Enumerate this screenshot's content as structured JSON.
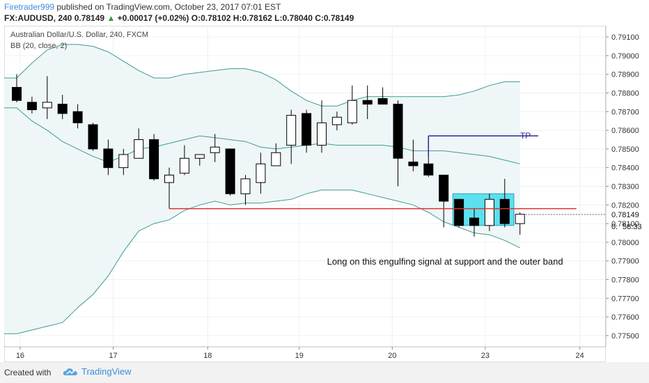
{
  "header": {
    "author": "Firetrader999",
    "published": " published on TradingView.com, October 23, 2017 07:01 EST",
    "symbol": "FX:AUDUSD, 240",
    "last": "0.78149",
    "change": "+0.00017 (+0.02%)",
    "ohlc": "O:0.78102 H:0.78162 L:0.78040 C:0.78149"
  },
  "footer": {
    "created_with": "Created with",
    "brand": "TradingView"
  },
  "colors": {
    "band_line": "#3f9b8f",
    "band_fill": "#eef6f8",
    "support_line": "#e03030",
    "tp_line": "#2a2a9a",
    "highlight": "#5ce0f0",
    "candle": "#000000"
  },
  "chart_data": {
    "type": "candlestick",
    "title": "Australian Dollar/U.S. Dollar, 240, FXCM",
    "indicator_label": "BB (20, close, 2)",
    "ylim": [
      0.7744,
      0.7916
    ],
    "y_ticks": [
      "0.77500",
      "0.77600",
      "0.77700",
      "0.77800",
      "0.77900",
      "0.78000",
      "0.78100",
      "0.78200",
      "0.78300",
      "0.78400",
      "0.78500",
      "0.78600",
      "0.78700",
      "0.78800",
      "0.78900",
      "0.79000",
      "0.79100"
    ],
    "x_ticks": [
      {
        "label": "16",
        "i": 0.5
      },
      {
        "label": "17",
        "i": 6.6
      },
      {
        "label": "18",
        "i": 12.8
      },
      {
        "label": "19",
        "i": 18.8
      },
      {
        "label": "20",
        "i": 24.9
      },
      {
        "label": "23",
        "i": 31
      },
      {
        "label": "24",
        "i": 37.2
      }
    ],
    "price_label": "0.78149",
    "countdown_label": "58:33",
    "countdown_prefix": "0.",
    "candles": [
      {
        "o": 0.7883,
        "h": 0.789,
        "l": 0.7875,
        "c": 0.7876
      },
      {
        "o": 0.7875,
        "h": 0.7878,
        "l": 0.7869,
        "c": 0.7871
      },
      {
        "o": 0.7872,
        "h": 0.7889,
        "l": 0.7866,
        "c": 0.7875
      },
      {
        "o": 0.7874,
        "h": 0.7879,
        "l": 0.7866,
        "c": 0.7869
      },
      {
        "o": 0.787,
        "h": 0.7874,
        "l": 0.7861,
        "c": 0.7864
      },
      {
        "o": 0.7863,
        "h": 0.7864,
        "l": 0.7849,
        "c": 0.785
      },
      {
        "o": 0.785,
        "h": 0.7855,
        "l": 0.7836,
        "c": 0.784
      },
      {
        "o": 0.784,
        "h": 0.785,
        "l": 0.7836,
        "c": 0.7847
      },
      {
        "o": 0.7845,
        "h": 0.7861,
        "l": 0.7845,
        "c": 0.7855
      },
      {
        "o": 0.7855,
        "h": 0.7858,
        "l": 0.7833,
        "c": 0.7834
      },
      {
        "o": 0.7832,
        "h": 0.784,
        "l": 0.7818,
        "c": 0.7836
      },
      {
        "o": 0.7837,
        "h": 0.7852,
        "l": 0.7836,
        "c": 0.7845
      },
      {
        "o": 0.7845,
        "h": 0.7847,
        "l": 0.7841,
        "c": 0.7847
      },
      {
        "o": 0.7848,
        "h": 0.7858,
        "l": 0.7843,
        "c": 0.7851
      },
      {
        "o": 0.785,
        "h": 0.785,
        "l": 0.7825,
        "c": 0.7826
      },
      {
        "o": 0.7826,
        "h": 0.7836,
        "l": 0.782,
        "c": 0.7834
      },
      {
        "o": 0.7832,
        "h": 0.7848,
        "l": 0.7826,
        "c": 0.7842
      },
      {
        "o": 0.7841,
        "h": 0.7853,
        "l": 0.7841,
        "c": 0.7848
      },
      {
        "o": 0.7852,
        "h": 0.7871,
        "l": 0.7842,
        "c": 0.7868
      },
      {
        "o": 0.7869,
        "h": 0.7871,
        "l": 0.7848,
        "c": 0.7852
      },
      {
        "o": 0.7852,
        "h": 0.7876,
        "l": 0.7848,
        "c": 0.7864
      },
      {
        "o": 0.7863,
        "h": 0.787,
        "l": 0.786,
        "c": 0.7867
      },
      {
        "o": 0.7864,
        "h": 0.7884,
        "l": 0.7863,
        "c": 0.7876
      },
      {
        "o": 0.7876,
        "h": 0.7884,
        "l": 0.7866,
        "c": 0.7874
      },
      {
        "o": 0.7877,
        "h": 0.7883,
        "l": 0.7874,
        "c": 0.7874
      },
      {
        "o": 0.7874,
        "h": 0.7876,
        "l": 0.783,
        "c": 0.7845
      },
      {
        "o": 0.7843,
        "h": 0.7855,
        "l": 0.7838,
        "c": 0.7841
      },
      {
        "o": 0.7842,
        "h": 0.7857,
        "l": 0.7835,
        "c": 0.7836
      },
      {
        "o": 0.7836,
        "h": 0.7836,
        "l": 0.7808,
        "c": 0.7822
      },
      {
        "o": 0.7823,
        "h": 0.7823,
        "l": 0.7808,
        "c": 0.7809
      },
      {
        "o": 0.7813,
        "h": 0.7818,
        "l": 0.7803,
        "c": 0.7809
      },
      {
        "o": 0.7809,
        "h": 0.7826,
        "l": 0.7806,
        "c": 0.7823
      },
      {
        "o": 0.7823,
        "h": 0.7834,
        "l": 0.7808,
        "c": 0.781
      },
      {
        "o": 0.781,
        "h": 0.7816,
        "l": 0.7804,
        "c": 0.7815
      }
    ],
    "bb_upper": [
      0.7888,
      0.7896,
      0.7903,
      0.7906,
      0.7906,
      0.7905,
      0.7902,
      0.7897,
      0.7892,
      0.7888,
      0.7888,
      0.789,
      0.7891,
      0.7892,
      0.7893,
      0.7893,
      0.7891,
      0.7887,
      0.7881,
      0.7876,
      0.7873,
      0.7873,
      0.7876,
      0.7878,
      0.7878,
      0.7878,
      0.7878,
      0.7878,
      0.7878,
      0.7879,
      0.7881,
      0.7884,
      0.7886,
      0.7886
    ],
    "bb_middle": [
      0.7872,
      0.7865,
      0.786,
      0.7854,
      0.785,
      0.7846,
      0.7843,
      0.7846,
      0.785,
      0.7851,
      0.7853,
      0.7855,
      0.7857,
      0.7856,
      0.7855,
      0.7854,
      0.7851,
      0.785,
      0.7851,
      0.7852,
      0.7853,
      0.7852,
      0.7852,
      0.7852,
      0.7852,
      0.7851,
      0.7849,
      0.7849,
      0.7849,
      0.7848,
      0.7847,
      0.7846,
      0.7844,
      0.7842
    ],
    "bb_lower": [
      0.7751,
      0.7753,
      0.7755,
      0.7757,
      0.7765,
      0.7772,
      0.7782,
      0.7795,
      0.7806,
      0.781,
      0.7812,
      0.7817,
      0.782,
      0.7822,
      0.782,
      0.7821,
      0.7821,
      0.7822,
      0.7823,
      0.7826,
      0.7828,
      0.7828,
      0.7828,
      0.7826,
      0.7824,
      0.7822,
      0.782,
      0.7816,
      0.7811,
      0.7808,
      0.7805,
      0.7804,
      0.7801,
      0.7797
    ],
    "support_line": {
      "value": 0.7818,
      "from_i": 10,
      "to_i": 36.7
    },
    "tp_line": {
      "value": 0.7857,
      "from_i": 27,
      "to_i": 34.2,
      "label": "TP"
    },
    "tp_connector": {
      "i": 27,
      "from": 0.7846,
      "to": 0.7857
    },
    "highlight_box": {
      "from_i": 28.6,
      "to_i": 32.6,
      "ylo": 0.7809,
      "yhi": 0.7826
    },
    "annotation": {
      "text": "Long on this engulfing signal at support and the outer band",
      "i": 24,
      "y": 0.7788
    }
  }
}
